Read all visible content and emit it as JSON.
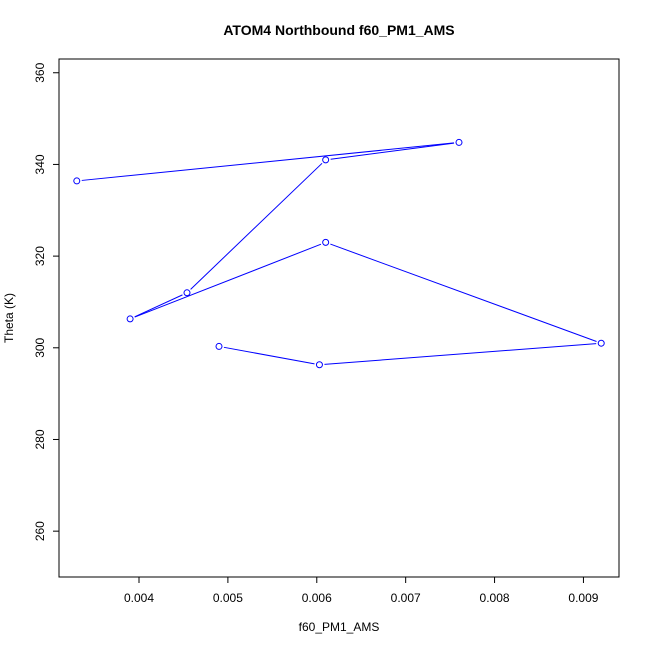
{
  "chart_data": {
    "type": "line",
    "title": "ATOM4 Northbound f60_PM1_AMS",
    "xlabel": "f60_PM1_AMS",
    "ylabel": "Theta (K)",
    "xlim": [
      0.0031,
      0.0094
    ],
    "ylim": [
      250,
      363
    ],
    "xticks": [
      0.004,
      0.005,
      0.006,
      0.007,
      0.008,
      0.009
    ],
    "xtick_labels": [
      "0.004",
      "0.005",
      "0.006",
      "0.007",
      "0.008",
      "0.009"
    ],
    "yticks": [
      260,
      280,
      300,
      320,
      340,
      360
    ],
    "ytick_labels": [
      "260",
      "280",
      "300",
      "320",
      "340",
      "360"
    ],
    "grid": false,
    "series": [
      {
        "color": "#0000ff",
        "marker": "open-circle",
        "x": [
          0.0049,
          0.00603,
          0.0092,
          0.0061,
          0.0039,
          0.00454,
          0.0061,
          0.0076,
          0.0033
        ],
        "y": [
          300.3,
          296.3,
          301.0,
          323.0,
          306.3,
          312.0,
          341.0,
          344.8,
          336.4
        ]
      }
    ]
  }
}
